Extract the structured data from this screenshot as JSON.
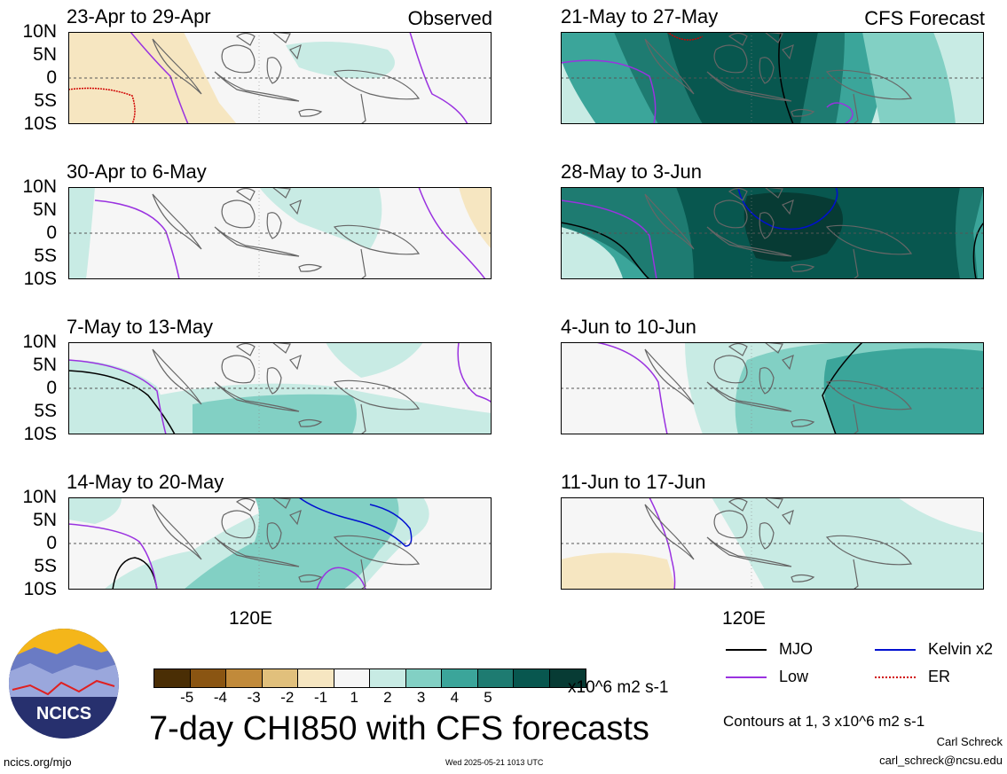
{
  "panels": [
    {
      "id": "p1",
      "title": "23-Apr to 29-Apr",
      "tag": "Observed"
    },
    {
      "id": "p2",
      "title": "21-May to 27-May",
      "tag": "CFS Forecast"
    },
    {
      "id": "p3",
      "title": "30-Apr to 6-May",
      "tag": ""
    },
    {
      "id": "p4",
      "title": "28-May to 3-Jun",
      "tag": ""
    },
    {
      "id": "p5",
      "title": "7-May to 13-May",
      "tag": ""
    },
    {
      "id": "p6",
      "title": "4-Jun to 10-Jun",
      "tag": ""
    },
    {
      "id": "p7",
      "title": "14-May to 20-May",
      "tag": ""
    },
    {
      "id": "p8",
      "title": "11-Jun to 17-Jun",
      "tag": ""
    }
  ],
  "lat_labels": [
    "10N",
    "5N",
    "0",
    "5S",
    "10S"
  ],
  "lon_label": "120E",
  "colorbar": {
    "colors": [
      "#4a2e05",
      "#8a5512",
      "#c18a3a",
      "#e1c07c",
      "#f6e6c1",
      "#f6f6f6",
      "#c8ebe4",
      "#82d0c4",
      "#3ba59a",
      "#1e7b71",
      "#08574f",
      "#073b34"
    ],
    "ticks": [
      "-5",
      "-4",
      "-3",
      "-2",
      "-1",
      "1",
      "2",
      "3",
      "4",
      "5"
    ],
    "units": "x10^6 m2 s-1"
  },
  "main_title": "7-day CHI850 with CFS forecasts",
  "legend": [
    {
      "label": "MJO",
      "color": "#000000",
      "style": "solid"
    },
    {
      "label": "Kelvin x2",
      "color": "#0010d0",
      "style": "solid"
    },
    {
      "label": "Low",
      "color": "#9a32e0",
      "style": "solid"
    },
    {
      "label": "ER",
      "color": "#d00000",
      "style": "dotted"
    }
  ],
  "contour_note": "Contours at 1, 3 x10^6 m2 s-1",
  "author": "Carl Schreck",
  "email": "carl_schreck@ncsu.edu",
  "url": "ncics.org/mjo",
  "timestamp": "Wed 2025-05-21 1013 UTC",
  "logo_text": "NCICS"
}
